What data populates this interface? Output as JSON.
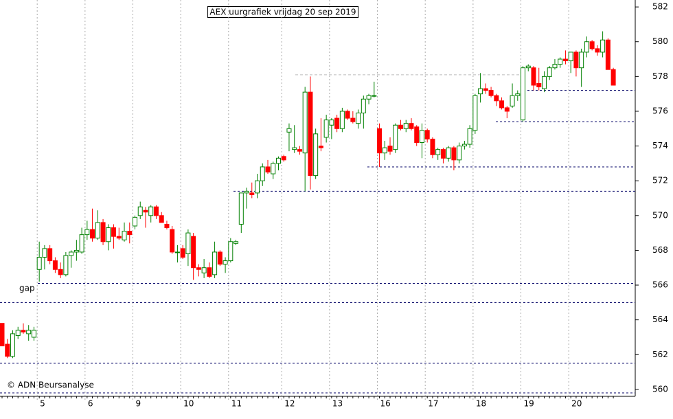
{
  "chart_data": {
    "type": "candlestick",
    "title": "AEX uurgrafiek vrijdag 20 sep 2019",
    "annotations": [
      "gap",
      "© ADN Beursanalyse"
    ],
    "categories": [
      null,
      null,
      null,
      null,
      null,
      null,
      null,
      "5",
      null,
      null,
      null,
      null,
      null,
      null,
      null,
      null,
      "6",
      null,
      null,
      null,
      null,
      null,
      null,
      null,
      null,
      "9",
      null,
      null,
      null,
      null,
      null,
      null,
      null,
      null,
      "10",
      null,
      null,
      null,
      null,
      null,
      null,
      null,
      null,
      "11",
      null,
      null,
      null,
      null,
      null,
      null,
      null,
      null,
      null,
      "12",
      null,
      null,
      null,
      null,
      null,
      null,
      null,
      null,
      "13",
      null,
      null,
      null,
      null,
      null,
      null,
      null,
      null,
      "16",
      null,
      null,
      null,
      null,
      null,
      null,
      null,
      null,
      "17",
      null,
      null,
      null,
      null,
      null,
      null,
      null,
      null,
      "18",
      null,
      null,
      null,
      null,
      null,
      null,
      null,
      null,
      "19",
      null,
      null,
      null,
      null,
      null,
      null,
      null,
      null,
      "20",
      null,
      null,
      null,
      null,
      null,
      null,
      null,
      null
    ],
    "open": [
      563.8,
      562.6,
      561.9,
      563.1,
      563.4,
      563.2,
      563.0,
      566.9,
      567.6,
      568.1,
      567.4,
      566.9,
      566.6,
      567.7,
      567.9,
      567.9,
      568.9,
      569.2,
      568.7,
      569.6,
      568.5,
      569.3,
      568.8,
      568.6,
      569.1,
      569.4,
      570.0,
      570.3,
      570.0,
      570.5,
      570.0,
      569.5,
      569.2,
      567.9,
      568.1,
      567.8,
      568.8,
      567.0,
      566.7,
      567.0,
      566.6,
      567.9,
      567.2,
      567.4,
      568.4,
      569.5,
      571.3,
      571.3,
      571.3,
      572.0,
      572.8,
      572.4,
      573.0,
      573.4,
      574.8,
      573.8,
      573.8,
      573.6,
      577.1,
      572.3,
      574.0,
      574.5,
      575.2,
      575.6,
      575.0,
      576.0,
      575.6,
      575.3,
      575.9,
      576.7,
      576.9,
      575.0,
      573.6,
      574.0,
      573.8,
      575.2,
      575.0,
      575.3,
      575.1,
      574.2,
      574.9,
      574.4,
      573.5,
      573.8,
      573.3,
      573.9,
      573.2,
      574.0,
      574.1,
      574.9,
      577.0,
      577.3,
      577.2,
      576.9,
      576.6,
      576.2,
      576.3,
      576.9,
      575.5,
      578.5,
      578.5,
      577.6,
      577.3,
      578.0,
      578.5,
      578.7,
      579.0,
      578.9,
      579.4,
      578.5,
      579.4,
      580.0,
      579.6,
      579.4,
      580.1,
      578.4
    ],
    "high": [
      563.8,
      562.9,
      563.4,
      563.6,
      563.8,
      563.7,
      563.6,
      568.5,
      568.3,
      568.3,
      567.6,
      567.3,
      567.9,
      568.0,
      568.6,
      569.3,
      569.7,
      570.4,
      570.3,
      569.8,
      569.5,
      569.5,
      569.3,
      569.6,
      569.6,
      570.0,
      570.8,
      570.5,
      570.6,
      570.6,
      570.2,
      569.7,
      569.4,
      568.3,
      568.3,
      569.2,
      569.0,
      567.2,
      567.5,
      567.3,
      568.5,
      568.0,
      567.6,
      568.7,
      568.6,
      571.3,
      571.6,
      571.9,
      572.4,
      573.0,
      573.2,
      573.1,
      573.4,
      573.5,
      575.3,
      575.2,
      574.0,
      577.4,
      578.0,
      575.0,
      575.6,
      575.8,
      575.6,
      575.8,
      576.2,
      576.1,
      576.0,
      576.1,
      576.9,
      577.0,
      577.7,
      575.3,
      574.3,
      574.5,
      575.3,
      575.5,
      575.5,
      575.6,
      575.2,
      575.3,
      575.0,
      574.5,
      573.9,
      573.9,
      574.0,
      574.0,
      574.2,
      574.3,
      575.2,
      577.0,
      578.2,
      577.6,
      577.4,
      577.0,
      576.8,
      576.3,
      577.6,
      577.2,
      578.6,
      578.7,
      578.6,
      578.5,
      578.3,
      578.6,
      579.0,
      579.1,
      579.5,
      579.4,
      579.5,
      579.6,
      580.3,
      580.1,
      579.8,
      580.6,
      580.2,
      578.5
    ],
    "low": [
      562.6,
      561.8,
      561.8,
      562.9,
      563.2,
      562.8,
      562.8,
      566.2,
      566.9,
      567.2,
      566.7,
      566.4,
      566.5,
      567.0,
      567.4,
      567.8,
      568.6,
      568.5,
      568.6,
      568.3,
      568.0,
      568.1,
      568.6,
      568.5,
      568.4,
      569.2,
      569.8,
      569.3,
      569.6,
      569.8,
      569.6,
      569.2,
      567.8,
      567.3,
      567.5,
      567.1,
      566.3,
      566.5,
      566.4,
      566.4,
      566.4,
      567.1,
      566.7,
      567.3,
      568.3,
      569.0,
      570.4,
      571.0,
      571.0,
      571.7,
      572.4,
      572.1,
      572.6,
      573.1,
      573.7,
      573.6,
      573.5,
      571.4,
      571.5,
      572.1,
      573.7,
      574.2,
      574.4,
      574.8,
      574.8,
      575.5,
      575.3,
      575.0,
      575.0,
      576.4,
      576.8,
      572.8,
      573.2,
      573.5,
      573.6,
      574.9,
      574.8,
      574.9,
      574.0,
      573.3,
      574.2,
      573.3,
      573.2,
      573.0,
      573.1,
      572.6,
      573.0,
      573.8,
      573.9,
      574.7,
      576.5,
      577.0,
      576.8,
      576.3,
      576.1,
      575.6,
      576.2,
      576.6,
      575.4,
      578.3,
      577.2,
      577.2,
      577.1,
      577.8,
      578.4,
      578.5,
      578.7,
      578.2,
      578.0,
      577.4,
      579.1,
      579.5,
      579.2,
      579.1,
      578.4,
      577.5
    ],
    "close": [
      562.5,
      561.9,
      563.2,
      563.4,
      563.3,
      563.4,
      563.4,
      567.6,
      568.1,
      567.4,
      566.9,
      566.6,
      567.7,
      567.9,
      568.0,
      568.9,
      569.2,
      568.7,
      569.6,
      568.5,
      569.3,
      568.8,
      568.7,
      569.1,
      568.9,
      569.9,
      570.5,
      570.2,
      570.5,
      570.0,
      569.6,
      569.3,
      567.9,
      567.9,
      567.6,
      569.0,
      567.0,
      566.9,
      567.0,
      566.5,
      567.9,
      567.2,
      567.4,
      568.5,
      568.5,
      571.3,
      571.4,
      571.2,
      572.0,
      572.8,
      572.5,
      573.0,
      573.3,
      573.2,
      575.0,
      573.9,
      573.7,
      577.1,
      572.3,
      574.7,
      573.9,
      575.5,
      575.5,
      575.0,
      576.0,
      575.6,
      575.4,
      575.9,
      576.7,
      576.9,
      576.9,
      573.6,
      573.9,
      573.7,
      575.2,
      575.0,
      575.3,
      575.0,
      574.2,
      574.9,
      574.4,
      573.5,
      573.8,
      573.3,
      573.9,
      573.2,
      574.0,
      574.1,
      575.0,
      576.9,
      577.3,
      577.2,
      576.9,
      576.6,
      576.2,
      576.0,
      576.9,
      577.0,
      578.5,
      578.6,
      577.5,
      577.4,
      578.0,
      578.5,
      578.7,
      579.0,
      578.9,
      579.4,
      578.5,
      579.4,
      580.0,
      579.6,
      579.4,
      580.1,
      578.4,
      577.5
    ],
    "up_color": "#008000",
    "down_color": "#ff0000",
    "reference_lines": [
      566.1,
      565.0,
      561.5,
      559.8,
      571.4,
      572.8,
      575.4,
      577.2,
      578.1
    ],
    "ylim": [
      559.6,
      582.4
    ],
    "yticks": [
      560,
      562,
      564,
      566,
      568,
      570,
      572,
      574,
      576,
      578,
      580,
      582
    ]
  }
}
